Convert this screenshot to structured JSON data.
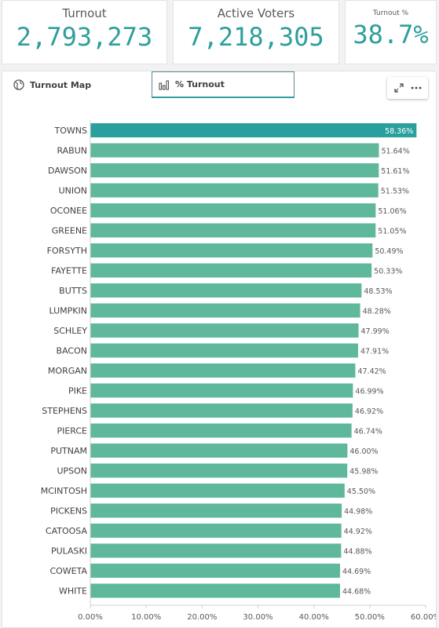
{
  "kpis": {
    "turnout": {
      "label": "Turnout",
      "value": "2,793,273"
    },
    "active_voters": {
      "label": "Active Voters",
      "value": "7,218,305"
    },
    "turnout_pct": {
      "label": "Turnout %",
      "value": "38.7%"
    }
  },
  "tabs": {
    "map": {
      "label": "Turnout Map",
      "icon": "globe-icon"
    },
    "turnout": {
      "label": "% Turnout",
      "icon": "bar-chart-icon",
      "selected": true
    }
  },
  "tools": [
    "expand-icon",
    "more-options-icon"
  ],
  "colors": {
    "accent": "#2e9f9b",
    "bar": "#5fb89c",
    "bar_selected": "#2aa09e"
  },
  "chart_data": {
    "type": "bar",
    "orientation": "horizontal",
    "categories": [
      "TOWNS",
      "RABUN",
      "DAWSON",
      "UNION",
      "OCONEE",
      "GREENE",
      "FORSYTH",
      "FAYETTE",
      "BUTTS",
      "LUMPKIN",
      "SCHLEY",
      "BACON",
      "MORGAN",
      "PIKE",
      "STEPHENS",
      "PIERCE",
      "PUTNAM",
      "UPSON",
      "MCINTOSH",
      "PICKENS",
      "CATOOSA",
      "PULASKI",
      "COWETA",
      "WHITE"
    ],
    "values": [
      58.36,
      51.64,
      51.61,
      51.53,
      51.06,
      51.05,
      50.49,
      50.33,
      48.53,
      48.28,
      47.99,
      47.91,
      47.42,
      46.99,
      46.92,
      46.74,
      46.0,
      45.98,
      45.5,
      44.98,
      44.92,
      44.88,
      44.69,
      44.68
    ],
    "data_labels": [
      "58.36%",
      "51.64%",
      "51.61%",
      "51.53%",
      "51.06%",
      "51.05%",
      "50.49%",
      "50.33%",
      "48.53%",
      "48.28%",
      "47.99%",
      "47.91%",
      "47.42%",
      "46.99%",
      "46.92%",
      "46.74%",
      "46.00%",
      "45.98%",
      "45.50%",
      "44.98%",
      "44.92%",
      "44.88%",
      "44.69%",
      "44.68%"
    ],
    "xlim": [
      0,
      60
    ],
    "x_ticks": [
      0,
      10,
      20,
      30,
      40,
      50,
      60
    ],
    "x_tick_labels": [
      "0.00%",
      "10.00%",
      "20.00%",
      "30.00%",
      "40.00%",
      "50.00%",
      "60.00%"
    ],
    "xlabel": "",
    "ylabel": "",
    "grid": false,
    "highlighted_category": "TOWNS"
  }
}
